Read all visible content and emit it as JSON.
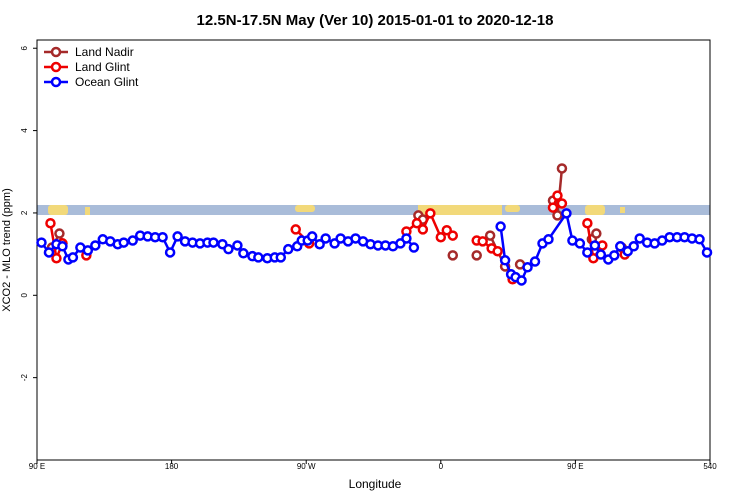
{
  "chart_data": {
    "type": "line",
    "title": "12.5N-17.5N May (Ver 10)   2015-01-01 to 2020-12-18",
    "xlabel": "Longitude",
    "ylabel": "XCO2 - MLO trend (ppm)",
    "xlim": [
      90,
      540
    ],
    "ylim": [
      -4,
      6.2
    ],
    "xticks": [
      {
        "value": 90,
        "label": "90 E"
      },
      180,
      {
        "value": 270,
        "label": "90 W"
      },
      {
        "value": 360,
        "label": "0"
      },
      {
        "value": 450,
        "label": "90 E"
      },
      540
    ],
    "yticks": [
      -2,
      0,
      2,
      4,
      6
    ],
    "legend": "top-left",
    "series": [
      {
        "name": "Land Nadir",
        "color": "#a52a2a",
        "x": [
          100,
          105,
          107,
          null,
          345,
          348,
          null,
          368,
          null,
          384,
          null,
          393,
          403,
          null,
          413,
          null,
          435,
          438,
          441,
          null,
          461,
          464,
          null,
          481
        ],
        "values": [
          1.16,
          1.5,
          1.26,
          null,
          1.94,
          1.84,
          null,
          0.97,
          null,
          0.97,
          null,
          1.45,
          0.7,
          null,
          0.75,
          null,
          2.3,
          1.94,
          3.08,
          null,
          1.36,
          1.5,
          null,
          1.16
        ]
      },
      {
        "name": "Land Glint",
        "color": "#ee0000",
        "x": [
          99,
          103,
          107,
          null,
          123,
          null,
          263,
          272,
          null,
          337,
          344,
          348,
          353,
          360,
          364,
          368,
          null,
          384,
          388,
          394,
          398,
          null,
          408,
          null,
          435,
          438,
          441,
          null,
          458,
          462,
          468,
          null,
          483
        ],
        "values": [
          1.75,
          0.9,
          1.26,
          null,
          0.97,
          null,
          1.6,
          1.26,
          null,
          1.55,
          1.75,
          1.6,
          1.99,
          1.41,
          1.58,
          1.45,
          null,
          1.33,
          1.31,
          1.14,
          1.07,
          null,
          0.39,
          null,
          2.13,
          2.42,
          2.23,
          null,
          1.75,
          0.9,
          1.21,
          null,
          0.99
        ]
      },
      {
        "name": "Ocean Glint",
        "color": "#0000ff",
        "x": [
          93,
          98,
          103,
          107,
          111,
          114,
          119,
          124,
          129,
          134,
          139,
          144,
          148,
          154,
          159,
          164,
          169,
          174,
          179,
          184,
          189,
          194,
          199,
          204,
          208,
          214,
          218,
          224,
          228,
          234,
          238,
          244,
          249,
          253,
          258,
          264,
          267,
          271,
          274,
          279,
          283,
          289,
          293,
          298,
          303,
          308,
          313,
          318,
          323,
          328,
          333,
          337,
          342,
          null,
          400,
          403,
          407,
          410,
          414,
          418,
          423,
          428,
          432,
          444,
          448,
          453,
          458,
          463,
          467,
          472,
          476,
          480,
          485,
          489,
          493,
          498,
          503,
          508,
          513,
          518,
          523,
          528,
          533,
          538
        ],
        "values": [
          1.28,
          1.04,
          1.24,
          1.19,
          0.87,
          0.92,
          1.16,
          1.09,
          1.21,
          1.36,
          1.31,
          1.24,
          1.28,
          1.33,
          1.45,
          1.43,
          1.41,
          1.41,
          1.04,
          1.43,
          1.31,
          1.28,
          1.26,
          1.28,
          1.28,
          1.24,
          1.12,
          1.21,
          1.02,
          0.95,
          0.92,
          0.9,
          0.92,
          0.92,
          1.12,
          1.19,
          1.33,
          1.33,
          1.43,
          1.24,
          1.38,
          1.26,
          1.38,
          1.31,
          1.38,
          1.31,
          1.24,
          1.21,
          1.21,
          1.19,
          1.26,
          1.38,
          1.16,
          null,
          1.67,
          0.85,
          0.51,
          0.44,
          0.36,
          0.68,
          0.82,
          1.26,
          1.36,
          1.99,
          1.33,
          1.26,
          1.04,
          1.21,
          0.99,
          0.87,
          0.97,
          1.19,
          1.07,
          1.19,
          1.38,
          1.28,
          1.26,
          1.33,
          1.41,
          1.41,
          1.41,
          1.38,
          1.36,
          1.04
        ]
      }
    ]
  }
}
